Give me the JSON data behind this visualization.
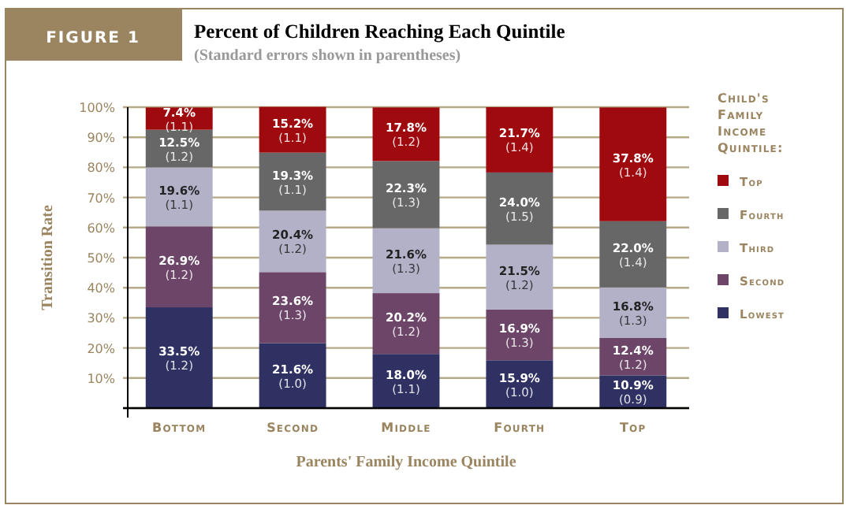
{
  "chart_data": {
    "type": "bar",
    "stacked": true,
    "title": "Percent of Children Reaching Each Quintile",
    "subtitle": "(Standard errors shown in parentheses)",
    "xlabel": "Parents' Family Income Quintile",
    "ylabel": "Transition Rate",
    "legend_title": "Child's Family Income Quintile:",
    "annotations": [
      "FIGURE 1"
    ],
    "categories": [
      "Bottom",
      "Second",
      "Middle",
      "Fourth",
      "Top"
    ],
    "series": [
      {
        "name": "Lowest",
        "color": "#2f3163",
        "values": [
          33.5,
          21.6,
          18.0,
          15.9,
          10.9
        ],
        "value_labels": [
          "33.5%\n(1.2)",
          "21.6%\n(1.0)",
          "18.0%\n(1.1)",
          "15.9%\n(1.0)",
          "10.9%\n(0.9)"
        ]
      },
      {
        "name": "Second",
        "color": "#6c4569",
        "values": [
          26.9,
          23.6,
          20.2,
          16.9,
          12.4
        ],
        "value_labels": [
          "26.9%\n(1.2)",
          "23.6%\n(1.3)",
          "20.2%\n(1.2)",
          "16.9%\n(1.3)",
          "12.4%\n(1.2)"
        ]
      },
      {
        "name": "Third",
        "color": "#b3b1c8",
        "values": [
          19.6,
          20.4,
          21.6,
          21.5,
          16.8
        ],
        "value_labels": [
          "19.6%\n(1.1)",
          "20.4%\n(1.2)",
          "21.6%\n(1.3)",
          "21.5%\n(1.2)",
          "16.8%\n(1.3)"
        ]
      },
      {
        "name": "Fourth",
        "color": "#676767",
        "values": [
          12.5,
          19.3,
          22.3,
          24.0,
          22.0
        ],
        "value_labels": [
          "12.5%\n(1.2)",
          "19.3%\n(1.1)",
          "22.3%\n(1.3)",
          "24.0%\n(1.5)",
          "22.0%\n(1.4)"
        ]
      },
      {
        "name": "Top",
        "color": "#9e0a0e",
        "values": [
          7.4,
          15.2,
          17.8,
          21.7,
          37.8
        ],
        "value_labels": [
          "7.4%\n(1.1)",
          "15.2%\n(1.1)",
          "17.8%\n(1.2)",
          "21.7%\n(1.4)",
          "37.8%\n(1.4)"
        ]
      }
    ],
    "ylim": [
      0,
      100
    ],
    "yticks": [
      {
        "value": 0,
        "label": null
      },
      {
        "value": 10,
        "label": "10%"
      },
      {
        "value": 20,
        "label": "20%"
      },
      {
        "value": 30,
        "label": "30%"
      },
      {
        "value": 40,
        "label": "40%"
      },
      {
        "value": 50,
        "label": "50%"
      },
      {
        "value": 60,
        "label": "60%"
      },
      {
        "value": 70,
        "label": "70%"
      },
      {
        "value": 80,
        "label": "80%"
      },
      {
        "value": 90,
        "label": "90%"
      },
      {
        "value": 100,
        "label": "100%"
      }
    ],
    "grid": "y",
    "legend": "right"
  }
}
